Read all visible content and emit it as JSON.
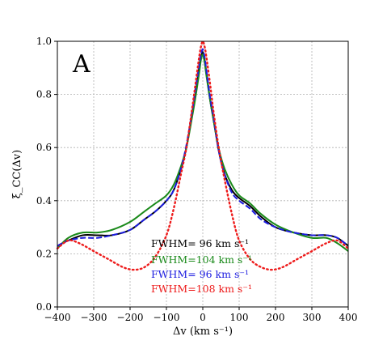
{
  "chart_data": {
    "type": "line",
    "panel_label": "A",
    "xlabel": "Δv (km s⁻¹)",
    "ylabel": "ξ_CC(Δv)",
    "xlim": [
      -400,
      400
    ],
    "ylim": [
      0.0,
      1.0
    ],
    "xticks": [
      -400,
      -300,
      -200,
      -100,
      0,
      100,
      200,
      300,
      400
    ],
    "xtick_labels": [
      "−400",
      "−300",
      "−200",
      "−100",
      "0",
      "100",
      "200",
      "300",
      "400"
    ],
    "yticks": [
      0.0,
      0.2,
      0.4,
      0.6,
      0.8,
      1.0
    ],
    "ytick_labels": [
      "0.0",
      "0.2",
      "0.4",
      "0.6",
      "0.8",
      "1.0"
    ],
    "grid": true,
    "series": [
      {
        "name": "FWHM= 96 km s⁻¹",
        "color": "#000000",
        "style": "solid",
        "x": [
          -400,
          -370,
          -330,
          -290,
          -250,
          -200,
          -160,
          -130,
          -100,
          -80,
          -60,
          -45,
          -30,
          -20,
          -10,
          -5,
          0,
          5,
          10,
          20,
          30,
          45,
          60,
          80,
          100,
          130,
          160,
          200,
          250,
          300,
          340,
          370,
          400
        ],
        "y": [
          0.23,
          0.25,
          0.27,
          0.27,
          0.27,
          0.29,
          0.33,
          0.36,
          0.4,
          0.44,
          0.52,
          0.6,
          0.72,
          0.8,
          0.9,
          0.94,
          0.96,
          0.93,
          0.88,
          0.78,
          0.7,
          0.58,
          0.5,
          0.44,
          0.41,
          0.38,
          0.34,
          0.3,
          0.28,
          0.27,
          0.27,
          0.26,
          0.23
        ]
      },
      {
        "name": "FWHM=104 km s⁻¹",
        "color": "#1a8a1a",
        "style": "solid",
        "x": [
          -400,
          -370,
          -330,
          -290,
          -250,
          -200,
          -160,
          -130,
          -100,
          -80,
          -60,
          -45,
          -30,
          -20,
          -10,
          -5,
          0,
          5,
          10,
          20,
          30,
          45,
          60,
          80,
          100,
          130,
          160,
          200,
          250,
          300,
          340,
          370,
          400
        ],
        "y": [
          0.22,
          0.26,
          0.28,
          0.28,
          0.29,
          0.32,
          0.36,
          0.39,
          0.42,
          0.46,
          0.53,
          0.6,
          0.71,
          0.79,
          0.88,
          0.93,
          0.95,
          0.92,
          0.87,
          0.78,
          0.7,
          0.59,
          0.52,
          0.46,
          0.42,
          0.39,
          0.35,
          0.31,
          0.28,
          0.26,
          0.26,
          0.24,
          0.21
        ]
      },
      {
        "name": "FWHM= 96 km s⁻¹",
        "color": "#1c1ce0",
        "style": "dashed",
        "x": [
          -400,
          -370,
          -330,
          -290,
          -250,
          -200,
          -160,
          -130,
          -100,
          -80,
          -60,
          -45,
          -30,
          -20,
          -10,
          -5,
          0,
          5,
          10,
          20,
          30,
          45,
          60,
          80,
          100,
          130,
          160,
          200,
          250,
          300,
          340,
          370,
          400
        ],
        "y": [
          0.23,
          0.25,
          0.26,
          0.26,
          0.27,
          0.29,
          0.33,
          0.36,
          0.4,
          0.44,
          0.52,
          0.61,
          0.73,
          0.82,
          0.91,
          0.95,
          0.97,
          0.94,
          0.89,
          0.79,
          0.71,
          0.58,
          0.5,
          0.43,
          0.4,
          0.37,
          0.33,
          0.3,
          0.28,
          0.27,
          0.27,
          0.26,
          0.23
        ]
      },
      {
        "name": "FWHM=108 km s⁻¹",
        "color": "#ee1c1c",
        "style": "dotted",
        "x": [
          -400,
          -370,
          -340,
          -300,
          -260,
          -220,
          -190,
          -160,
          -130,
          -100,
          -80,
          -60,
          -45,
          -30,
          -20,
          -10,
          -5,
          0,
          5,
          10,
          20,
          30,
          45,
          60,
          80,
          100,
          130,
          160,
          190,
          220,
          260,
          300,
          340,
          370,
          400
        ],
        "y": [
          0.22,
          0.25,
          0.24,
          0.21,
          0.18,
          0.15,
          0.14,
          0.15,
          0.19,
          0.27,
          0.37,
          0.5,
          0.6,
          0.74,
          0.84,
          0.94,
          0.98,
          1.0,
          0.98,
          0.94,
          0.84,
          0.73,
          0.59,
          0.48,
          0.35,
          0.25,
          0.18,
          0.15,
          0.14,
          0.15,
          0.18,
          0.21,
          0.24,
          0.25,
          0.22
        ]
      }
    ]
  }
}
